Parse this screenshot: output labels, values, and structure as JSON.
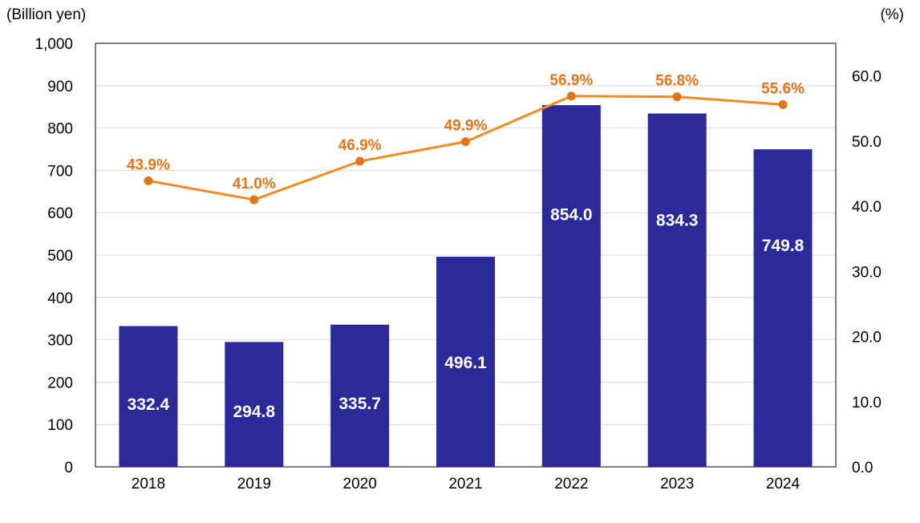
{
  "chart_data": {
    "type": "bar",
    "categories": [
      "2018",
      "2019",
      "2020",
      "2021",
      "2022",
      "2023",
      "2024"
    ],
    "bar_series": {
      "values": [
        332.4,
        294.8,
        335.7,
        496.1,
        854.0,
        834.3,
        749.8
      ],
      "labels": [
        "332.4",
        "294.8",
        "335.7",
        "496.1",
        "854.0",
        "834.3",
        "749.8"
      ],
      "color": "#2b2a98"
    },
    "line_series": {
      "values": [
        43.9,
        41.0,
        46.9,
        49.9,
        56.9,
        56.8,
        55.6
      ],
      "labels": [
        "43.9%",
        "41.0%",
        "46.9%",
        "49.9%",
        "56.9%",
        "56.8%",
        "55.6%"
      ],
      "color": "#f08b24",
      "label_color": "#e2741b"
    },
    "left_axis": {
      "unit_label": "(Billion yen)",
      "ylim": [
        0,
        1000
      ],
      "ticks": [
        0,
        100,
        200,
        300,
        400,
        500,
        600,
        700,
        800,
        900,
        1000
      ],
      "tick_labels": [
        "0",
        "100",
        "200",
        "300",
        "400",
        "500",
        "600",
        "700",
        "800",
        "900",
        "1,000"
      ]
    },
    "right_axis": {
      "unit_label": "(%)",
      "ylim": [
        0,
        65
      ],
      "ticks": [
        0,
        10,
        20,
        30,
        40,
        50,
        60
      ],
      "tick_labels": [
        "0.0",
        "10.0",
        "20.0",
        "30.0",
        "40.0",
        "50.0",
        "60.0"
      ]
    },
    "grid": true,
    "legend": "none"
  }
}
